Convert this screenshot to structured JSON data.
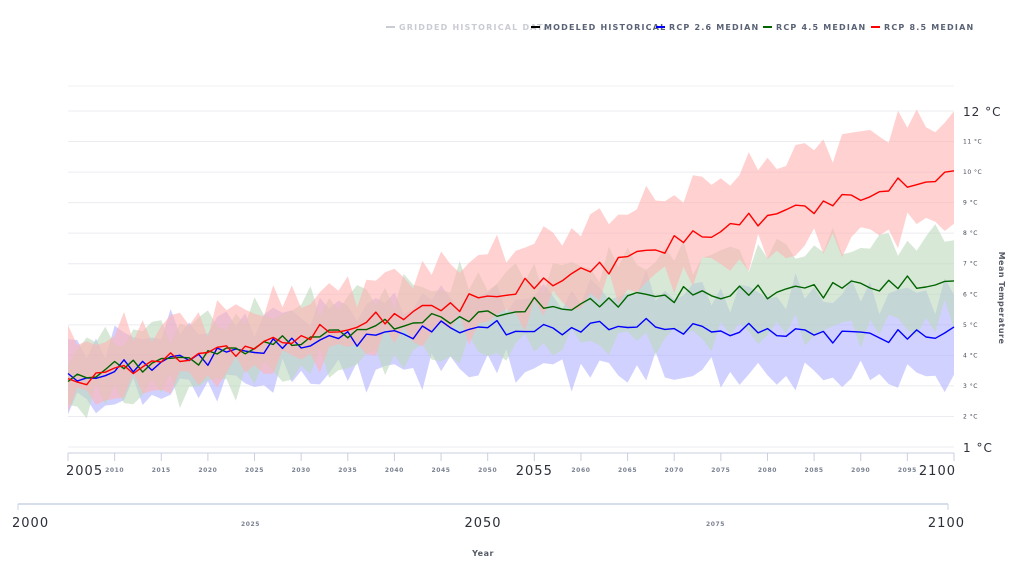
{
  "legend": [
    {
      "label": "GRIDDED HISTORICAL DATA",
      "color": "#c9ccd3"
    },
    {
      "label": "MODELED HISTORICAL",
      "color": "#000000"
    },
    {
      "label": "RCP 2.6 MEDIAN",
      "color": "#0000ff"
    },
    {
      "label": "RCP 4.5 MEDIAN",
      "color": "#006400"
    },
    {
      "label": "RCP 8.5 MEDIAN",
      "color": "#ff0000"
    }
  ],
  "axes": {
    "ylabel": "Mean Temperature",
    "xlabel": "Year",
    "y_ticks": [
      "1 °C",
      "2 °C",
      "3 °C",
      "4 °C",
      "5 °C",
      "6 °C",
      "7 °C",
      "8 °C",
      "9 °C",
      "10 °C",
      "11 °C",
      "12 °C"
    ],
    "x_ticks_main": [
      "2005",
      "2010",
      "2015",
      "2020",
      "2025",
      "2030",
      "2035",
      "2040",
      "2045",
      "2050",
      "2055",
      "2060",
      "2065",
      "2070",
      "2075",
      "2080",
      "2085",
      "2090",
      "2095",
      "2100"
    ],
    "x_ticks_nav": [
      "2000",
      "2025",
      "2050",
      "2075",
      "2100"
    ]
  },
  "chart_data": {
    "type": "line",
    "xlabel": "Year",
    "ylabel": "Mean Temperature",
    "xlim": [
      2005,
      2100
    ],
    "ylim": [
      1,
      12
    ],
    "navigator_xlim": [
      2000,
      2100
    ],
    "grid": true,
    "legend_position": "top-right",
    "x": [
      2005,
      2010,
      2015,
      2020,
      2025,
      2030,
      2035,
      2040,
      2045,
      2050,
      2055,
      2060,
      2065,
      2070,
      2075,
      2080,
      2085,
      2090,
      2095,
      2100
    ],
    "series": [
      {
        "name": "RCP 2.6 MEDIAN",
        "color": "#0000ff",
        "fill": "#b3b3ff",
        "values": [
          3.1,
          3.5,
          3.8,
          4.0,
          4.2,
          4.4,
          4.6,
          4.7,
          4.9,
          4.9,
          4.8,
          4.9,
          5.0,
          4.9,
          4.8,
          4.8,
          4.7,
          4.7,
          4.6,
          4.8
        ],
        "low": [
          2.3,
          2.5,
          2.8,
          3.0,
          3.1,
          3.3,
          3.4,
          3.5,
          3.6,
          3.6,
          3.6,
          3.5,
          3.5,
          3.4,
          3.4,
          3.3,
          3.3,
          3.3,
          3.3,
          3.3
        ],
        "high": [
          4.2,
          4.5,
          4.8,
          5.0,
          5.2,
          5.4,
          5.6,
          5.7,
          5.9,
          5.9,
          5.9,
          6.0,
          6.1,
          6.1,
          6.0,
          6.0,
          6.0,
          6.0,
          6.0,
          6.1
        ]
      },
      {
        "name": "RCP 4.5 MEDIAN",
        "color": "#006400",
        "fill": "#bcd9bc",
        "values": [
          3.2,
          3.6,
          3.8,
          4.0,
          4.3,
          4.5,
          4.8,
          5.0,
          5.2,
          5.3,
          5.6,
          5.6,
          5.9,
          6.0,
          6.0,
          6.1,
          6.2,
          6.3,
          6.3,
          6.4
        ],
        "low": [
          2.4,
          2.6,
          2.9,
          3.0,
          3.3,
          3.5,
          3.7,
          3.9,
          4.0,
          4.1,
          4.3,
          4.4,
          4.5,
          4.6,
          4.7,
          4.8,
          4.8,
          4.9,
          5.0,
          5.1
        ],
        "high": [
          4.2,
          4.6,
          4.9,
          5.1,
          5.3,
          5.6,
          5.9,
          6.1,
          6.3,
          6.5,
          6.7,
          6.9,
          7.1,
          7.2,
          7.3,
          7.4,
          7.5,
          7.6,
          7.7,
          7.9
        ]
      },
      {
        "name": "RCP 8.5 MEDIAN",
        "color": "#ff0000",
        "fill": "#ffb3b3",
        "values": [
          3.1,
          3.5,
          3.8,
          4.1,
          4.3,
          4.6,
          4.9,
          5.3,
          5.6,
          5.9,
          6.3,
          6.7,
          7.2,
          7.7,
          8.1,
          8.6,
          8.9,
          9.2,
          9.6,
          9.9
        ],
        "low": [
          2.5,
          2.7,
          3.0,
          3.3,
          3.6,
          3.9,
          4.2,
          4.5,
          4.8,
          5.1,
          5.5,
          5.8,
          6.2,
          6.6,
          7.0,
          7.3,
          7.6,
          7.9,
          8.2,
          8.5
        ],
        "high": [
          4.3,
          4.7,
          5.0,
          5.3,
          5.6,
          5.9,
          6.2,
          6.6,
          6.9,
          7.3,
          7.7,
          8.2,
          8.8,
          9.3,
          9.8,
          10.3,
          10.8,
          11.2,
          11.6,
          11.7
        ]
      }
    ]
  }
}
